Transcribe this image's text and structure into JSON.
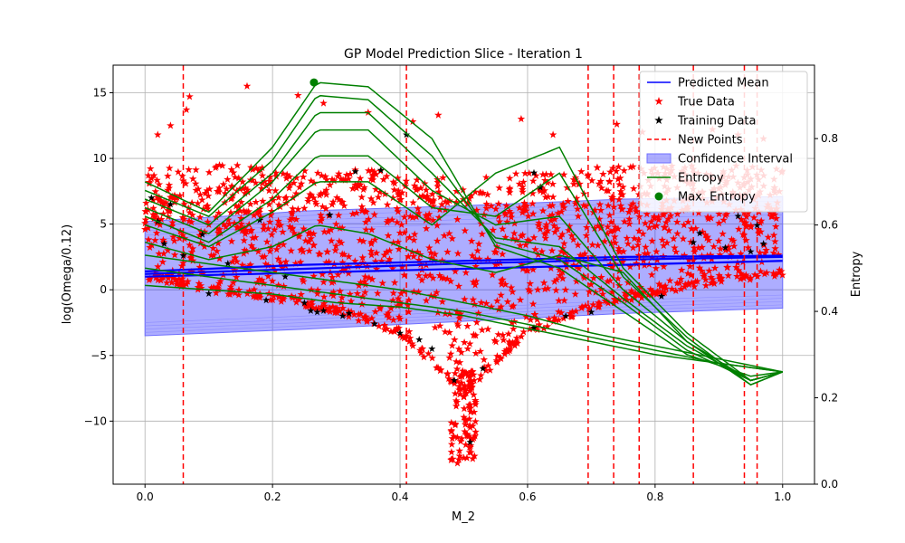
{
  "chart_data": {
    "type": "scatter",
    "title": "GP Model Prediction Slice - Iteration 1",
    "xlabel": "M_2",
    "ylabel": "log(Omega/0.12)",
    "y2label": "Entropy",
    "xlim": [
      -0.05,
      1.05
    ],
    "ylim": [
      -14.8,
      17.1
    ],
    "y2lim": [
      0.0,
      0.97
    ],
    "x_ticks": [
      "0.0",
      "0.2",
      "0.4",
      "0.6",
      "0.8",
      "1.0"
    ],
    "y_ticks": [
      "−10",
      "−5",
      "0",
      "5",
      "10",
      "15"
    ],
    "y2_ticks": [
      "0.0",
      "0.2",
      "0.4",
      "0.6",
      "0.8"
    ],
    "grid": true,
    "legend_position": "top-right",
    "legend": [
      {
        "label": "Predicted Mean",
        "kind": "line",
        "color": "#0000ff"
      },
      {
        "label": "True Data",
        "kind": "star",
        "color": "#ff0000"
      },
      {
        "label": "Training Data",
        "kind": "star",
        "color": "#000000"
      },
      {
        "label": "New Points",
        "kind": "dashed",
        "color": "#ff0000"
      },
      {
        "label": "Confidence Interval",
        "kind": "patch",
        "color": "#0000ff"
      },
      {
        "label": "Entropy",
        "kind": "line",
        "color": "#008000"
      },
      {
        "label": "Max. Entropy",
        "kind": "dot",
        "color": "#008000"
      }
    ],
    "new_points_x": [
      0.06,
      0.41,
      0.695,
      0.735,
      0.775,
      0.86,
      0.94,
      0.96
    ],
    "predicted_mean": [
      {
        "x": [
          0.0,
          0.25,
          0.5,
          0.75,
          1.0
        ],
        "y": [
          1.2,
          1.6,
          2.0,
          2.3,
          2.5
        ]
      },
      {
        "x": [
          0.0,
          0.25,
          0.5,
          0.75,
          1.0
        ],
        "y": [
          1.0,
          1.3,
          1.6,
          1.9,
          2.2
        ]
      },
      {
        "x": [
          0.0,
          0.25,
          0.5,
          0.75,
          1.0
        ],
        "y": [
          1.4,
          1.9,
          2.2,
          2.5,
          2.6
        ]
      }
    ],
    "confidence_interval": {
      "x": [
        0.0,
        0.25,
        0.5,
        0.75,
        1.0
      ],
      "upper": [
        5.2,
        6.0,
        6.4,
        6.9,
        7.1
      ],
      "lower": [
        -3.5,
        -3.0,
        -2.4,
        -1.8,
        -1.4
      ]
    },
    "true_data_band": {
      "x": [
        0.0,
        0.1,
        0.2,
        0.3,
        0.4,
        0.5,
        0.6,
        0.7,
        0.8,
        0.9,
        1.0
      ],
      "lower": [
        0.8,
        -0.2,
        -0.8,
        -1.8,
        -3.5,
        -8.0,
        -3.5,
        -1.5,
        -0.4,
        0.5,
        1.0
      ],
      "upper": [
        9.2,
        9.5,
        9.5,
        9.2,
        9.0,
        8.6,
        9.0,
        9.3,
        9.5,
        9.5,
        9.3
      ]
    },
    "true_data_outliers": [
      {
        "x": 0.07,
        "y": 14.7
      },
      {
        "x": 0.065,
        "y": 13.7
      },
      {
        "x": 0.04,
        "y": 12.5
      },
      {
        "x": 0.02,
        "y": 11.8
      },
      {
        "x": 0.16,
        "y": 15.5
      },
      {
        "x": 0.24,
        "y": 14.8
      },
      {
        "x": 0.28,
        "y": 14.2
      },
      {
        "x": 0.35,
        "y": 13.5
      },
      {
        "x": 0.42,
        "y": 12.8
      },
      {
        "x": 0.46,
        "y": 13.3
      },
      {
        "x": 0.59,
        "y": 13.0
      },
      {
        "x": 0.64,
        "y": 11.8
      },
      {
        "x": 0.74,
        "y": 12.6
      },
      {
        "x": 0.78,
        "y": 12.0
      },
      {
        "x": 0.89,
        "y": 12.2
      },
      {
        "x": 0.93,
        "y": 11.8
      },
      {
        "x": 0.97,
        "y": 11.5
      },
      {
        "x": 0.49,
        "y": -13.2
      },
      {
        "x": 0.5,
        "y": -12.8
      },
      {
        "x": 0.51,
        "y": -12.0
      },
      {
        "x": 0.505,
        "y": -11.0
      }
    ],
    "training_data": [
      {
        "x": 0.01,
        "y": 7.0
      },
      {
        "x": 0.02,
        "y": 5.2
      },
      {
        "x": 0.03,
        "y": 3.5
      },
      {
        "x": 0.04,
        "y": 6.5
      },
      {
        "x": 0.06,
        "y": 2.6
      },
      {
        "x": 0.09,
        "y": 4.2
      },
      {
        "x": 0.1,
        "y": -0.3
      },
      {
        "x": 0.13,
        "y": 2.0
      },
      {
        "x": 0.18,
        "y": 5.3
      },
      {
        "x": 0.19,
        "y": -0.8
      },
      {
        "x": 0.22,
        "y": 1.0
      },
      {
        "x": 0.25,
        "y": -1.0
      },
      {
        "x": 0.26,
        "y": -1.6
      },
      {
        "x": 0.27,
        "y": -1.7
      },
      {
        "x": 0.28,
        "y": -1.6
      },
      {
        "x": 0.29,
        "y": 5.7
      },
      {
        "x": 0.31,
        "y": -2.0
      },
      {
        "x": 0.32,
        "y": -1.8
      },
      {
        "x": 0.33,
        "y": 9.0
      },
      {
        "x": 0.36,
        "y": -2.6
      },
      {
        "x": 0.37,
        "y": 9.1
      },
      {
        "x": 0.4,
        "y": -3.3
      },
      {
        "x": 0.41,
        "y": 11.8
      },
      {
        "x": 0.43,
        "y": -3.8
      },
      {
        "x": 0.45,
        "y": -4.5
      },
      {
        "x": 0.485,
        "y": -6.9
      },
      {
        "x": 0.51,
        "y": -11.6
      },
      {
        "x": 0.53,
        "y": -6.0
      },
      {
        "x": 0.61,
        "y": -2.9
      },
      {
        "x": 0.61,
        "y": 8.9
      },
      {
        "x": 0.62,
        "y": 7.8
      },
      {
        "x": 0.66,
        "y": -2.0
      },
      {
        "x": 0.7,
        "y": -1.7
      },
      {
        "x": 0.81,
        "y": -0.5
      },
      {
        "x": 0.86,
        "y": 3.6
      },
      {
        "x": 0.87,
        "y": 4.3
      },
      {
        "x": 0.91,
        "y": 3.2
      },
      {
        "x": 0.93,
        "y": 5.6
      },
      {
        "x": 0.95,
        "y": 2.9
      },
      {
        "x": 0.96,
        "y": 4.9
      },
      {
        "x": 0.97,
        "y": 3.5
      }
    ],
    "entropy": [
      {
        "x": [
          0.0,
          0.1,
          0.2,
          0.27,
          0.35,
          0.45,
          0.55,
          0.65,
          0.75,
          0.85,
          0.95,
          1.0
        ],
        "y": [
          0.7,
          0.63,
          0.78,
          0.93,
          0.92,
          0.8,
          0.55,
          0.5,
          0.4,
          0.3,
          0.25,
          0.26
        ]
      },
      {
        "x": [
          0.0,
          0.1,
          0.2,
          0.27,
          0.35,
          0.45,
          0.55,
          0.65,
          0.75,
          0.85,
          0.95,
          1.0
        ],
        "y": [
          0.68,
          0.62,
          0.75,
          0.9,
          0.89,
          0.76,
          0.56,
          0.52,
          0.42,
          0.31,
          0.24,
          0.26
        ]
      },
      {
        "x": [
          0.0,
          0.1,
          0.2,
          0.27,
          0.35,
          0.45,
          0.55,
          0.65,
          0.75,
          0.85,
          0.95,
          1.0
        ],
        "y": [
          0.66,
          0.6,
          0.72,
          0.86,
          0.86,
          0.72,
          0.57,
          0.55,
          0.43,
          0.32,
          0.24,
          0.26
        ]
      },
      {
        "x": [
          0.0,
          0.1,
          0.2,
          0.27,
          0.35,
          0.45,
          0.55,
          0.65,
          0.75,
          0.85,
          0.95,
          1.0
        ],
        "y": [
          0.64,
          0.58,
          0.7,
          0.82,
          0.82,
          0.68,
          0.6,
          0.62,
          0.45,
          0.33,
          0.23,
          0.26
        ]
      },
      {
        "x": [
          0.0,
          0.1,
          0.2,
          0.27,
          0.35,
          0.45,
          0.55,
          0.65,
          0.75,
          0.85,
          0.95,
          1.0
        ],
        "y": [
          0.62,
          0.56,
          0.66,
          0.76,
          0.76,
          0.64,
          0.62,
          0.72,
          0.48,
          0.34,
          0.23,
          0.26
        ]
      },
      {
        "x": [
          0.0,
          0.1,
          0.2,
          0.27,
          0.35,
          0.45,
          0.55,
          0.65,
          0.75,
          0.85,
          0.95,
          1.0
        ],
        "y": [
          0.6,
          0.55,
          0.63,
          0.7,
          0.7,
          0.6,
          0.72,
          0.78,
          0.5,
          0.35,
          0.24,
          0.26
        ]
      },
      {
        "x": [
          0.0,
          0.1,
          0.2,
          0.27,
          0.35,
          0.45,
          0.55,
          0.65,
          0.75,
          0.85,
          0.95,
          1.0
        ],
        "y": [
          0.56,
          0.52,
          0.55,
          0.6,
          0.58,
          0.52,
          0.49,
          0.53,
          0.49,
          0.33,
          0.24,
          0.26
        ]
      },
      {
        "x": [
          0.0,
          0.1,
          0.2,
          0.3,
          0.4,
          0.5,
          0.6,
          0.7,
          0.8,
          0.9,
          1.0
        ],
        "y": [
          0.5,
          0.48,
          0.46,
          0.44,
          0.42,
          0.4,
          0.37,
          0.34,
          0.31,
          0.28,
          0.26
        ]
      },
      {
        "x": [
          0.0,
          0.1,
          0.2,
          0.3,
          0.4,
          0.5,
          0.6,
          0.7,
          0.8,
          0.9,
          1.0
        ],
        "y": [
          0.53,
          0.51,
          0.49,
          0.47,
          0.45,
          0.42,
          0.39,
          0.35,
          0.32,
          0.29,
          0.26
        ]
      },
      {
        "x": [
          0.0,
          0.1,
          0.2,
          0.3,
          0.4,
          0.5,
          0.6,
          0.7,
          0.8,
          0.9,
          1.0
        ],
        "y": [
          0.46,
          0.45,
          0.44,
          0.42,
          0.41,
          0.39,
          0.36,
          0.33,
          0.3,
          0.28,
          0.26
        ]
      }
    ],
    "max_entropy": {
      "x": 0.265,
      "y": 0.93
    },
    "colors": {
      "mean": "#0000ff",
      "true_data": "#ff0000",
      "training_data": "#000000",
      "new_points": "#ff0000",
      "confidence_fill": "#0000ff",
      "entropy": "#008000",
      "grid": "#b0b0b0"
    }
  }
}
